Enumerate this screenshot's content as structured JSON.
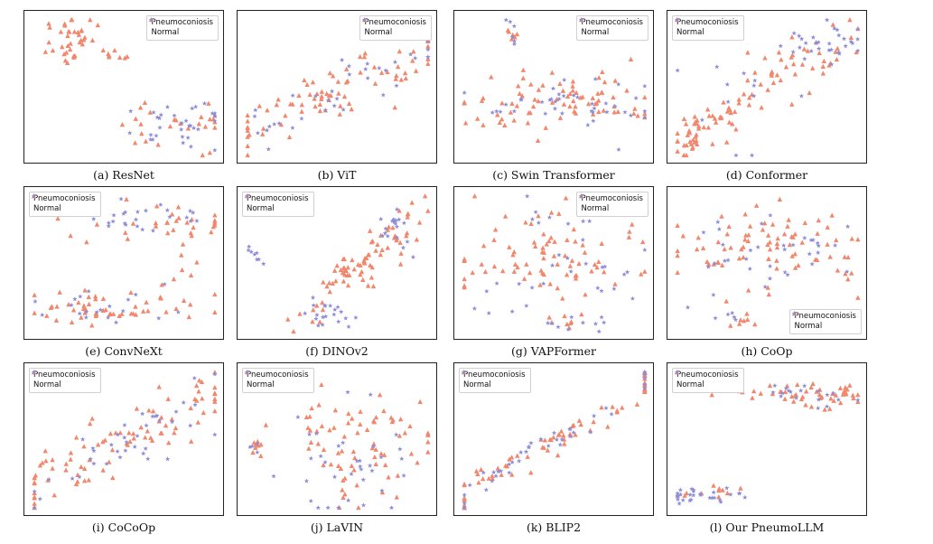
{
  "figure": {
    "type": "t-SNE scatter grid"
  },
  "legend": {
    "series": [
      {
        "key": "pneumo",
        "label": "Pneumoconiosis",
        "color": "#f1876c",
        "marker": "triangle"
      },
      {
        "key": "normal",
        "label": "Normal",
        "color": "#8c8cd8",
        "marker": "star"
      }
    ]
  },
  "chart_data": [
    {
      "type": "scatter",
      "caption": "(a) ResNet",
      "legend_loc": "top-right",
      "clusters": [
        {
          "series": "pneumo",
          "n": 38,
          "cx": 0.22,
          "cy": 0.84,
          "sx": 0.1,
          "sy": 0.1,
          "ang": 0
        },
        {
          "series": "pneumo",
          "n": 7,
          "cx": 0.45,
          "cy": 0.7,
          "sx": 0.03,
          "sy": 0.05,
          "ang": 0
        },
        {
          "series": "pneumo",
          "n": 26,
          "cx": 0.78,
          "cy": 0.25,
          "sx": 0.16,
          "sy": 0.1,
          "ang": 0
        },
        {
          "series": "normal",
          "n": 32,
          "cx": 0.78,
          "cy": 0.24,
          "sx": 0.15,
          "sy": 0.09,
          "ang": 0
        }
      ]
    },
    {
      "type": "scatter",
      "caption": "(b) ViT",
      "legend_loc": "top-right",
      "clusters": [
        {
          "series": "pneumo",
          "n": 80,
          "cx": 0.52,
          "cy": 0.5,
          "sx": 0.45,
          "sy": 0.08,
          "ang": 30
        },
        {
          "series": "normal",
          "n": 40,
          "cx": 0.55,
          "cy": 0.48,
          "sx": 0.42,
          "sy": 0.08,
          "ang": 30
        }
      ]
    },
    {
      "type": "scatter",
      "caption": "(c) Swin Transformer",
      "legend_loc": "top-right",
      "clusters": [
        {
          "series": "pneumo",
          "n": 6,
          "cx": 0.28,
          "cy": 0.9,
          "sx": 0.025,
          "sy": 0.05,
          "ang": 0
        },
        {
          "series": "normal",
          "n": 6,
          "cx": 0.28,
          "cy": 0.9,
          "sx": 0.025,
          "sy": 0.05,
          "ang": 0
        },
        {
          "series": "pneumo",
          "n": 80,
          "cx": 0.5,
          "cy": 0.38,
          "sx": 0.3,
          "sy": 0.11,
          "ang": 0
        },
        {
          "series": "normal",
          "n": 40,
          "cx": 0.55,
          "cy": 0.38,
          "sx": 0.28,
          "sy": 0.1,
          "ang": 0
        }
      ]
    },
    {
      "type": "scatter",
      "caption": "(d) Conformer",
      "legend_loc": "top-left",
      "clusters": [
        {
          "series": "pneumo",
          "n": 80,
          "cx": 0.42,
          "cy": 0.45,
          "sx": 0.4,
          "sy": 0.08,
          "ang": 40
        },
        {
          "series": "pneumo",
          "n": 20,
          "cx": 0.1,
          "cy": 0.17,
          "sx": 0.04,
          "sy": 0.06,
          "ang": 0
        },
        {
          "series": "normal",
          "n": 30,
          "cx": 0.8,
          "cy": 0.82,
          "sx": 0.12,
          "sy": 0.07,
          "ang": 0
        },
        {
          "series": "normal",
          "n": 12,
          "cx": 0.3,
          "cy": 0.4,
          "sx": 0.2,
          "sy": 0.15,
          "ang": 0
        }
      ]
    },
    {
      "type": "scatter",
      "caption": "(e) ConvNeXt",
      "legend_loc": "top-left",
      "clusters": [
        {
          "series": "pneumo",
          "n": 50,
          "cx": 0.38,
          "cy": 0.18,
          "sx": 0.24,
          "sy": 0.07,
          "ang": 0
        },
        {
          "series": "normal",
          "n": 20,
          "cx": 0.4,
          "cy": 0.18,
          "sx": 0.2,
          "sy": 0.06,
          "ang": 0
        },
        {
          "series": "pneumo",
          "n": 30,
          "cx": 0.65,
          "cy": 0.8,
          "sx": 0.25,
          "sy": 0.08,
          "ang": 0
        },
        {
          "series": "normal",
          "n": 25,
          "cx": 0.65,
          "cy": 0.82,
          "sx": 0.2,
          "sy": 0.06,
          "ang": 0
        },
        {
          "series": "pneumo",
          "n": 10,
          "cx": 0.82,
          "cy": 0.55,
          "sx": 0.05,
          "sy": 0.15,
          "ang": 0
        }
      ]
    },
    {
      "type": "scatter",
      "caption": "(f) DINOv2",
      "legend_loc": "top-left",
      "clusters": [
        {
          "series": "pneumo",
          "n": 80,
          "cx": 0.62,
          "cy": 0.5,
          "sx": 0.3,
          "sy": 0.06,
          "ang": 52
        },
        {
          "series": "normal",
          "n": 20,
          "cx": 0.42,
          "cy": 0.15,
          "sx": 0.08,
          "sy": 0.05,
          "ang": 0
        },
        {
          "series": "normal",
          "n": 18,
          "cx": 0.82,
          "cy": 0.75,
          "sx": 0.06,
          "sy": 0.08,
          "ang": 0
        },
        {
          "series": "normal",
          "n": 8,
          "cx": 0.07,
          "cy": 0.55,
          "sx": 0.02,
          "sy": 0.05,
          "ang": 0
        }
      ]
    },
    {
      "type": "scatter",
      "caption": "(g) VAPFormer",
      "legend_loc": "top-right",
      "clusters": [
        {
          "series": "pneumo",
          "n": 80,
          "cx": 0.45,
          "cy": 0.55,
          "sx": 0.28,
          "sy": 0.2,
          "ang": 0
        },
        {
          "series": "normal",
          "n": 35,
          "cx": 0.55,
          "cy": 0.5,
          "sx": 0.25,
          "sy": 0.2,
          "ang": 0
        },
        {
          "series": "pneumo",
          "n": 8,
          "cx": 0.55,
          "cy": 0.08,
          "sx": 0.1,
          "sy": 0.03,
          "ang": 0
        },
        {
          "series": "normal",
          "n": 8,
          "cx": 0.58,
          "cy": 0.1,
          "sx": 0.08,
          "sy": 0.03,
          "ang": 0
        }
      ]
    },
    {
      "type": "scatter",
      "caption": "(h) CoOp",
      "legend_loc": "bottom-right",
      "clusters": [
        {
          "series": "pneumo",
          "n": 80,
          "cx": 0.5,
          "cy": 0.6,
          "sx": 0.28,
          "sy": 0.15,
          "ang": 0
        },
        {
          "series": "normal",
          "n": 35,
          "cx": 0.6,
          "cy": 0.58,
          "sx": 0.22,
          "sy": 0.13,
          "ang": 0
        },
        {
          "series": "pneumo",
          "n": 8,
          "cx": 0.35,
          "cy": 0.12,
          "sx": 0.05,
          "sy": 0.04,
          "ang": 0
        },
        {
          "series": "normal",
          "n": 5,
          "cx": 0.35,
          "cy": 0.12,
          "sx": 0.05,
          "sy": 0.04,
          "ang": 0
        }
      ]
    },
    {
      "type": "scatter",
      "caption": "(i) CoCoOp",
      "legend_loc": "top-left",
      "clusters": [
        {
          "series": "pneumo",
          "n": 90,
          "cx": 0.5,
          "cy": 0.5,
          "sx": 0.45,
          "sy": 0.1,
          "ang": 33
        },
        {
          "series": "normal",
          "n": 40,
          "cx": 0.5,
          "cy": 0.5,
          "sx": 0.42,
          "sy": 0.1,
          "ang": 33
        }
      ]
    },
    {
      "type": "scatter",
      "caption": "(j) LaVIN",
      "legend_loc": "top-left",
      "clusters": [
        {
          "series": "pneumo",
          "n": 75,
          "cx": 0.6,
          "cy": 0.5,
          "sx": 0.2,
          "sy": 0.2,
          "ang": 0
        },
        {
          "series": "normal",
          "n": 35,
          "cx": 0.55,
          "cy": 0.38,
          "sx": 0.15,
          "sy": 0.18,
          "ang": 0
        },
        {
          "series": "pneumo",
          "n": 8,
          "cx": 0.07,
          "cy": 0.48,
          "sx": 0.02,
          "sy": 0.05,
          "ang": 0
        },
        {
          "series": "normal",
          "n": 4,
          "cx": 0.07,
          "cy": 0.48,
          "sx": 0.02,
          "sy": 0.05,
          "ang": 0
        }
      ]
    },
    {
      "type": "scatter",
      "caption": "(k) BLIP2",
      "legend_loc": "top-left",
      "clusters": [
        {
          "series": "pneumo",
          "n": 80,
          "cx": 0.5,
          "cy": 0.5,
          "sx": 0.5,
          "sy": 0.04,
          "ang": 35
        },
        {
          "series": "normal",
          "n": 40,
          "cx": 0.5,
          "cy": 0.5,
          "sx": 0.48,
          "sy": 0.04,
          "ang": 35
        }
      ]
    },
    {
      "type": "scatter",
      "caption": "(l) Our PneumoLLM",
      "legend_loc": "top-left",
      "clusters": [
        {
          "series": "pneumo",
          "n": 50,
          "cx": 0.72,
          "cy": 0.82,
          "sx": 0.18,
          "sy": 0.05,
          "ang": 0
        },
        {
          "series": "normal",
          "n": 18,
          "cx": 0.72,
          "cy": 0.82,
          "sx": 0.15,
          "sy": 0.04,
          "ang": 0
        },
        {
          "series": "pneumo",
          "n": 5,
          "cx": 0.12,
          "cy": 0.1,
          "sx": 0.07,
          "sy": 0.02,
          "ang": 0
        },
        {
          "series": "normal",
          "n": 22,
          "cx": 0.12,
          "cy": 0.1,
          "sx": 0.08,
          "sy": 0.02,
          "ang": 0
        },
        {
          "series": "pneumo",
          "n": 6,
          "cx": 0.27,
          "cy": 0.15,
          "sx": 0.04,
          "sy": 0.03,
          "ang": 0
        },
        {
          "series": "normal",
          "n": 6,
          "cx": 0.27,
          "cy": 0.15,
          "sx": 0.04,
          "sy": 0.03,
          "ang": 0
        }
      ]
    }
  ]
}
